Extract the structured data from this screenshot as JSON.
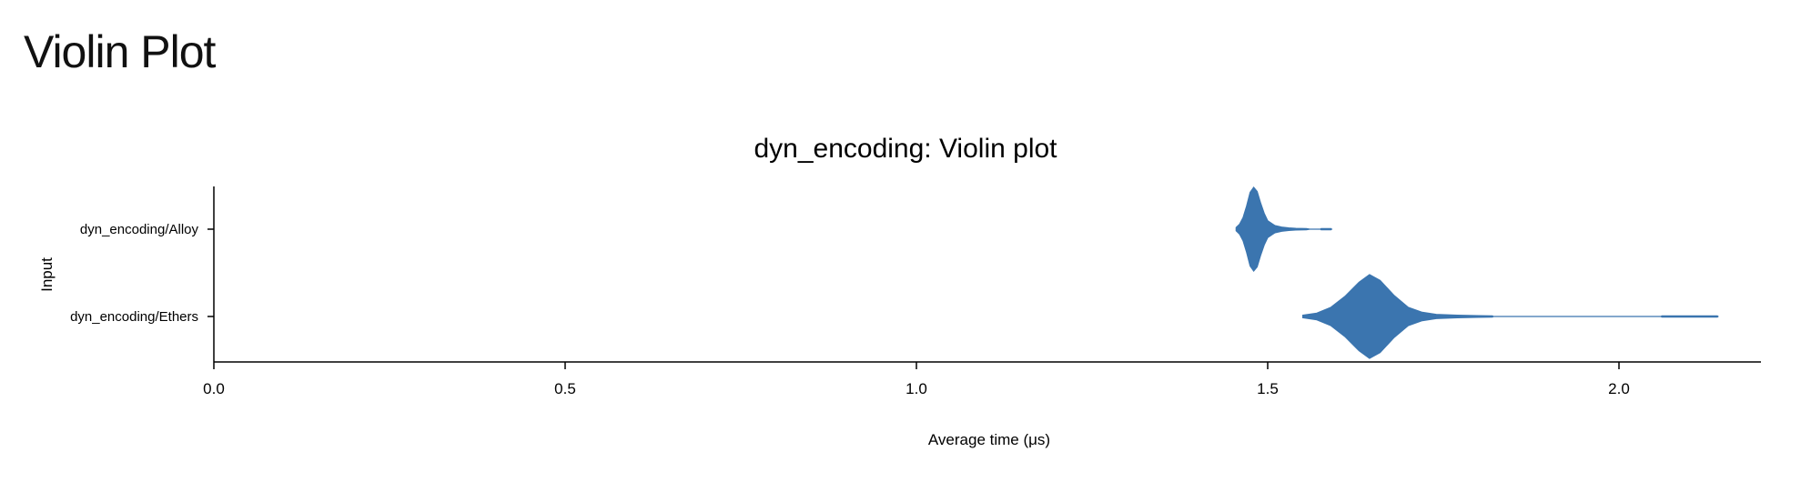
{
  "page": {
    "heading": "Violin Plot"
  },
  "colors": {
    "violin": "#3b75af",
    "axis": "#000000"
  },
  "chart_data": {
    "type": "violin",
    "title": "dyn_encoding: Violin plot",
    "xlabel": "Average time (μs)",
    "ylabel": "Input",
    "xlim": [
      0,
      2.2
    ],
    "xticks": [
      "0.0",
      "0.5",
      "1.0",
      "1.5",
      "2.0"
    ],
    "categories": [
      "dyn_encoding/Alloy",
      "dyn_encoding/Ethers"
    ],
    "series": [
      {
        "name": "dyn_encoding/Alloy",
        "density": [
          [
            1.455,
            0.04
          ],
          [
            1.46,
            0.12
          ],
          [
            1.465,
            0.28
          ],
          [
            1.47,
            0.55
          ],
          [
            1.475,
            0.88
          ],
          [
            1.48,
            1.0
          ],
          [
            1.485,
            0.9
          ],
          [
            1.49,
            0.62
          ],
          [
            1.495,
            0.38
          ],
          [
            1.5,
            0.2
          ],
          [
            1.51,
            0.09
          ],
          [
            1.52,
            0.05
          ],
          [
            1.53,
            0.03
          ],
          [
            1.54,
            0.02
          ],
          [
            1.555,
            0.015
          ],
          [
            1.56,
            0.0
          ],
          [
            1.575,
            0.0
          ],
          [
            1.576,
            0.012
          ],
          [
            1.59,
            0.012
          ],
          [
            1.591,
            0.0
          ]
        ]
      },
      {
        "name": "dyn_encoding/Ethers",
        "density": [
          [
            1.55,
            0.03
          ],
          [
            1.57,
            0.08
          ],
          [
            1.59,
            0.22
          ],
          [
            1.61,
            0.48
          ],
          [
            1.63,
            0.82
          ],
          [
            1.645,
            1.0
          ],
          [
            1.66,
            0.86
          ],
          [
            1.68,
            0.5
          ],
          [
            1.7,
            0.22
          ],
          [
            1.72,
            0.1
          ],
          [
            1.74,
            0.05
          ],
          [
            1.77,
            0.03
          ],
          [
            1.8,
            0.02
          ],
          [
            1.82,
            0.015
          ],
          [
            1.821,
            0.0
          ],
          [
            2.06,
            0.0
          ],
          [
            2.061,
            0.015
          ],
          [
            2.14,
            0.015
          ],
          [
            2.141,
            0.0
          ]
        ]
      }
    ]
  }
}
